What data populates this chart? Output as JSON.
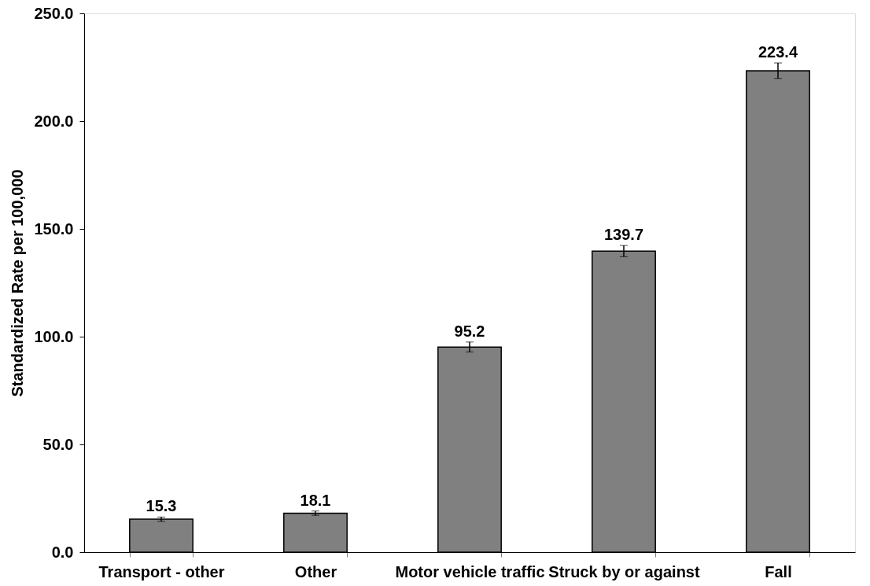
{
  "chart_data": {
    "type": "bar",
    "ylabel": "Standardized Rate per 100,000",
    "categories": [
      "Transport - other",
      "Other",
      "Motor vehicle traffic",
      "Struck by or against",
      "Fall"
    ],
    "values": [
      15.3,
      18.1,
      95.2,
      139.7,
      223.4
    ],
    "color": "#808080",
    "errors": [
      1.0,
      1.0,
      2.3,
      2.6,
      3.6
    ],
    "ylim": [
      0,
      250
    ],
    "yticks": [
      {
        "value": 0,
        "label": "0.0"
      },
      {
        "value": 50,
        "label": "50.0"
      },
      {
        "value": 100,
        "label": "100.0"
      },
      {
        "value": 150,
        "label": "150.0"
      },
      {
        "value": 200,
        "label": "200.0"
      },
      {
        "value": 250,
        "label": "250.0"
      }
    ],
    "data_labels": true
  }
}
